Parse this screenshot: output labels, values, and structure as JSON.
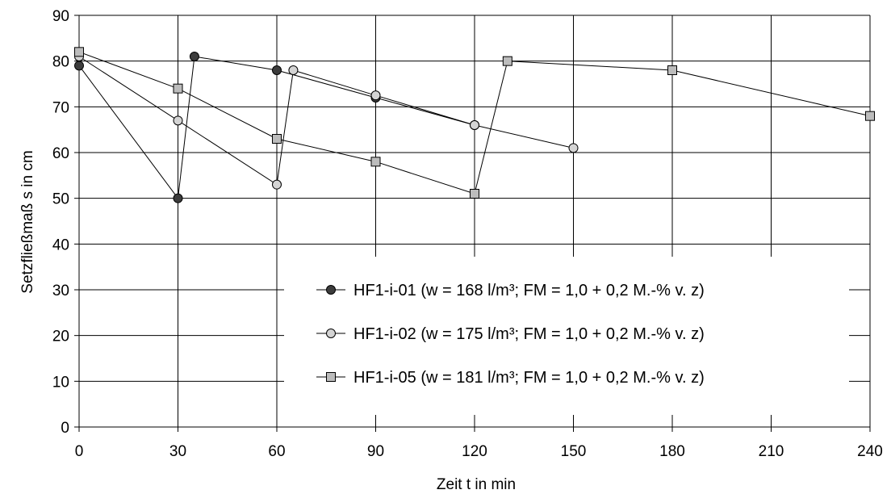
{
  "chart_data": {
    "type": "line",
    "xlabel": "Zeit t in min",
    "ylabel": "Setzfließmaß s in cm",
    "xlim": [
      0,
      240
    ],
    "ylim": [
      0,
      90
    ],
    "xticks": [
      0,
      30,
      60,
      90,
      120,
      150,
      180,
      210,
      240
    ],
    "yticks": [
      0,
      10,
      20,
      30,
      40,
      50,
      60,
      70,
      80,
      90
    ],
    "grid": true,
    "legend_position": "bottom-right",
    "series": [
      {
        "name": "HF1-i-01 (w = 168 l/m³; FM = 1,0 + 0,2 M.-% v. z)",
        "marker": "circle",
        "color": "#3c3c3c",
        "points": [
          [
            0,
            79
          ],
          [
            30,
            50
          ],
          [
            35,
            81
          ],
          [
            60,
            78
          ],
          [
            90,
            72
          ],
          [
            120,
            66
          ]
        ]
      },
      {
        "name": "HF1-i-02 (w = 175 l/m³; FM = 1,0 + 0,2 M.-% v. z)",
        "marker": "circle",
        "color": "#d4d4d4",
        "points": [
          [
            0,
            81
          ],
          [
            30,
            67
          ],
          [
            60,
            53
          ],
          [
            65,
            78
          ],
          [
            90,
            72.5
          ],
          [
            120,
            66
          ],
          [
            150,
            61
          ]
        ]
      },
      {
        "name": "HF1-i-05 (w = 181 l/m³; FM = 1,0 + 0,2 M.-% v. z)",
        "marker": "square",
        "color": "#bcbcbc",
        "points": [
          [
            0,
            82
          ],
          [
            30,
            74
          ],
          [
            60,
            63
          ],
          [
            90,
            58
          ],
          [
            120,
            51
          ],
          [
            130,
            80
          ],
          [
            180,
            78
          ],
          [
            240,
            68
          ]
        ]
      }
    ]
  }
}
